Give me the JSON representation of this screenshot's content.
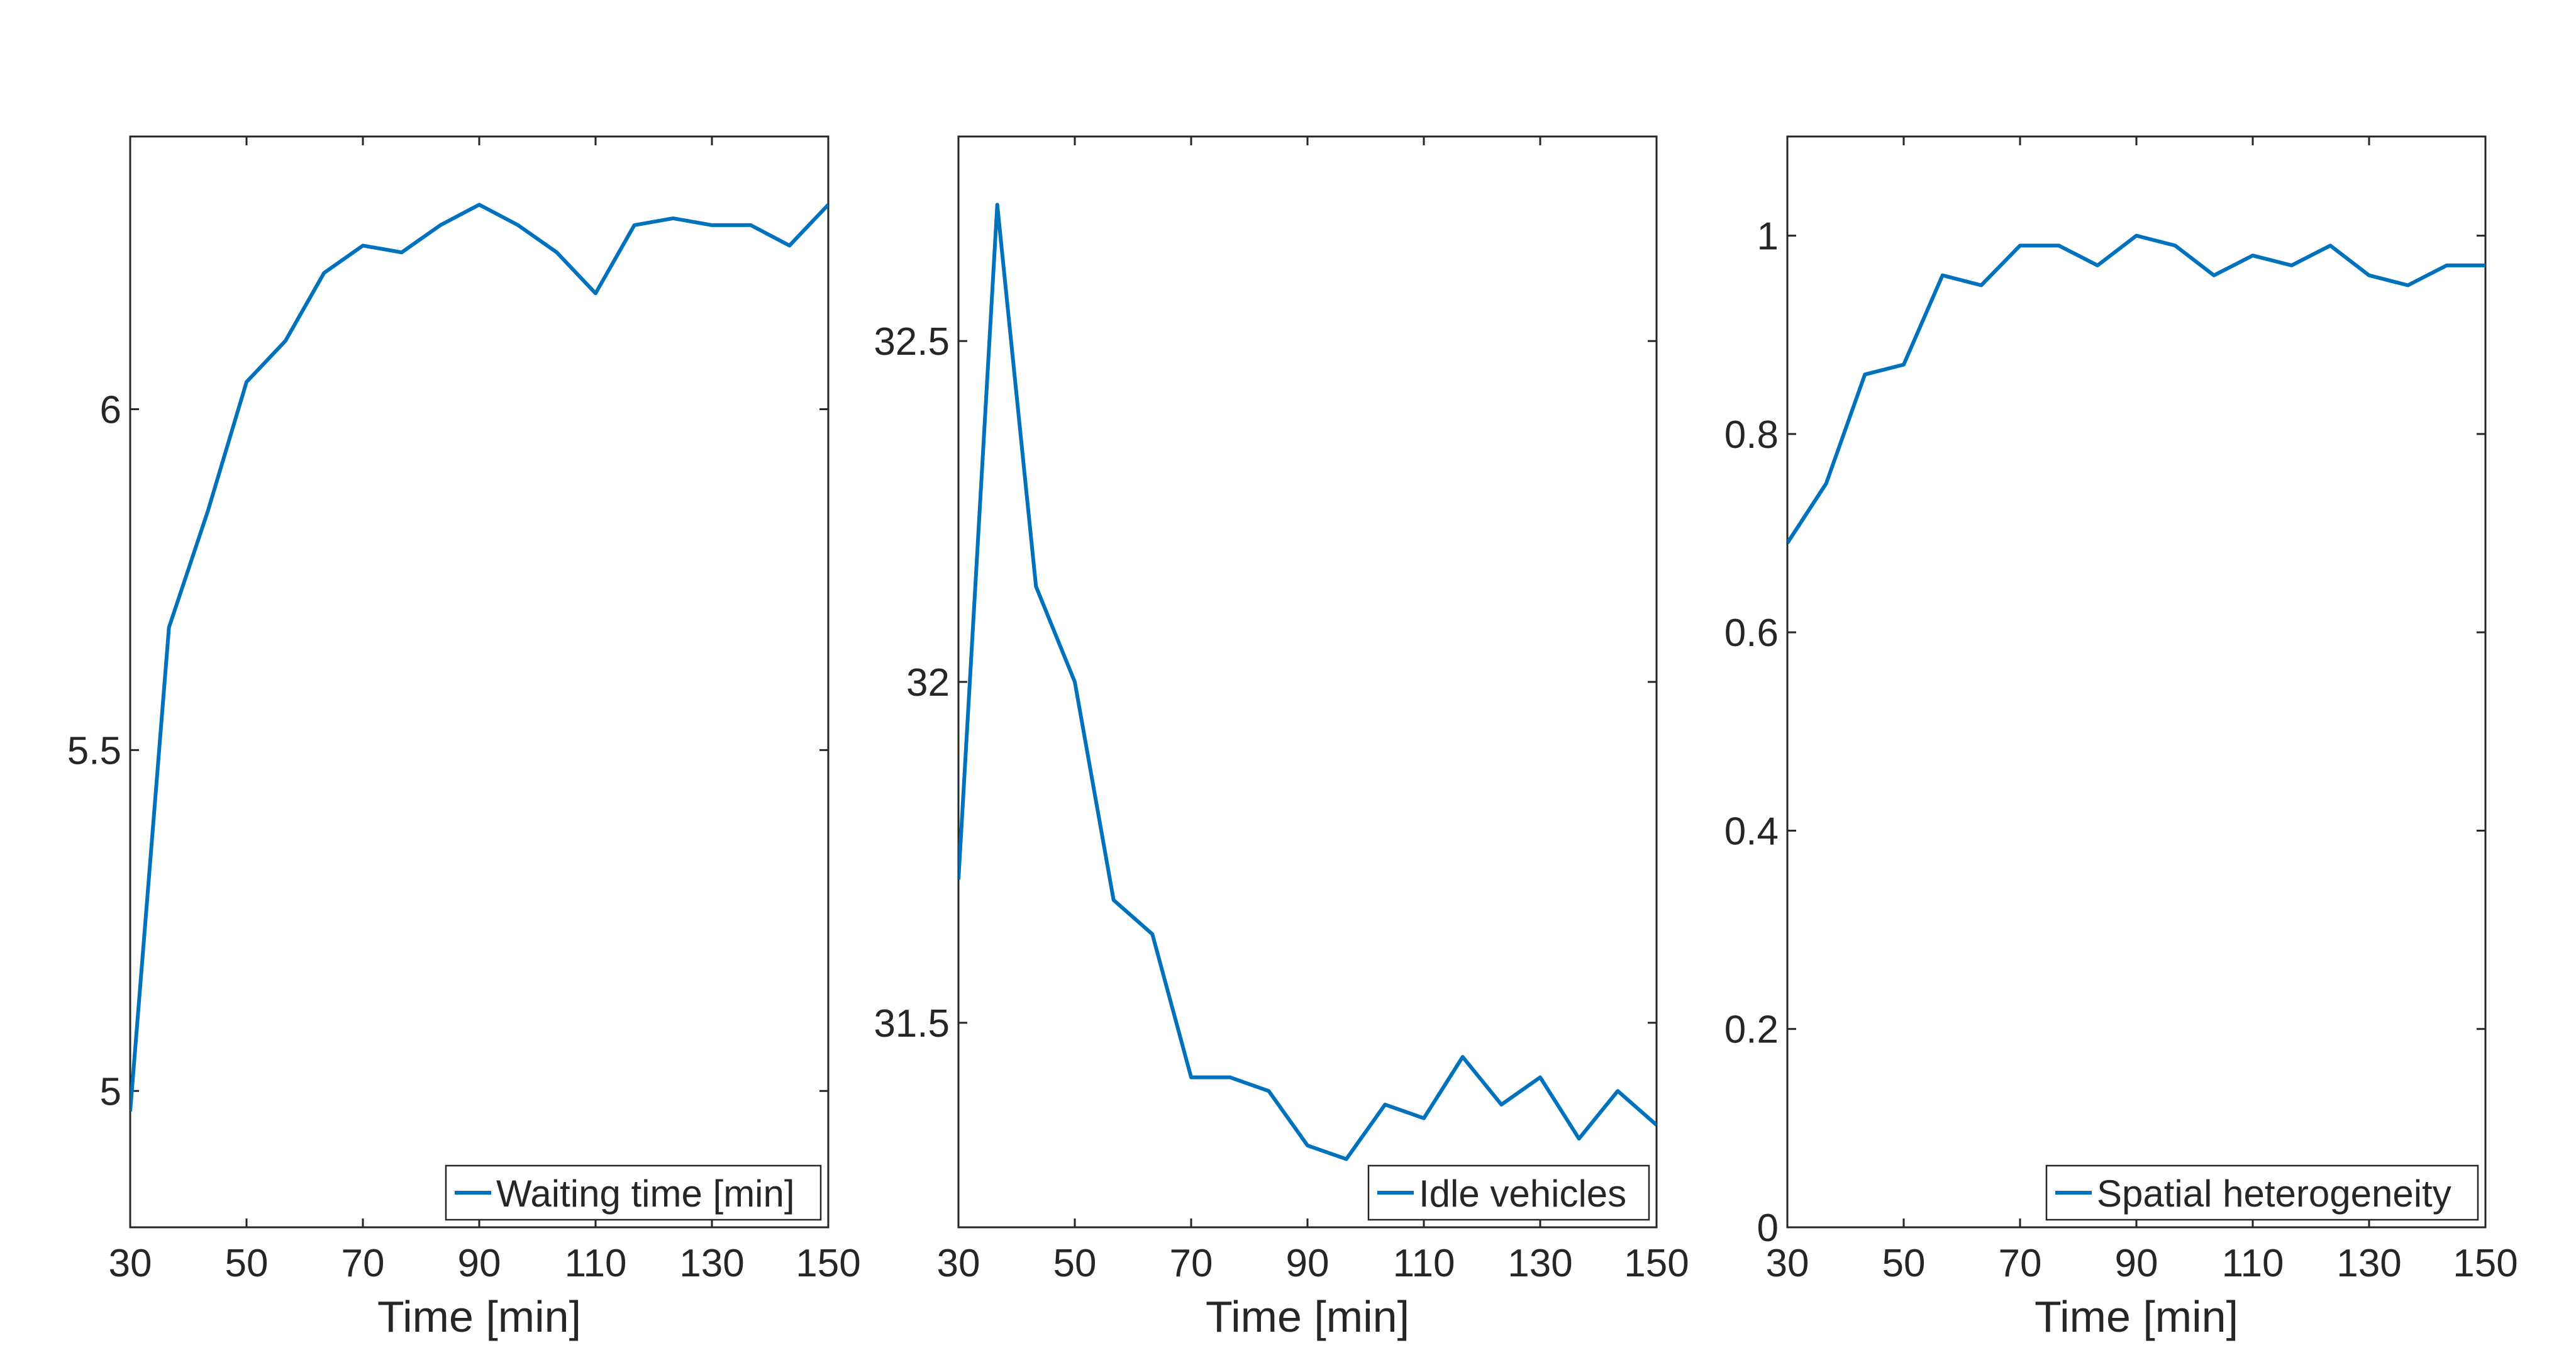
{
  "chart_data": [
    {
      "type": "line",
      "xlabel": "Time [min]",
      "ylabel": "",
      "xlim": [
        30,
        150
      ],
      "ylim": [
        4.8,
        6.4
      ],
      "xticks": [
        30,
        50,
        70,
        90,
        110,
        130,
        150
      ],
      "yticks": [
        5,
        5.5,
        6
      ],
      "legend_position": "bottom-right",
      "grid": false,
      "series": [
        {
          "name": "Waiting time [min]",
          "color": "#0072BD",
          "x": [
            30,
            36.67,
            43.33,
            50,
            56.67,
            63.33,
            70,
            76.67,
            83.33,
            90,
            96.67,
            103.33,
            110,
            116.67,
            123.33,
            130,
            136.67,
            143.33,
            150
          ],
          "values": [
            4.97,
            5.68,
            5.85,
            6.04,
            6.1,
            6.2,
            6.24,
            6.23,
            6.27,
            6.3,
            6.27,
            6.23,
            6.17,
            6.27,
            6.28,
            6.27,
            6.27,
            6.24,
            6.3
          ]
        }
      ]
    },
    {
      "type": "line",
      "xlabel": "Time [min]",
      "ylabel": "",
      "xlim": [
        30,
        150
      ],
      "ylim": [
        31.2,
        32.8
      ],
      "xticks": [
        30,
        50,
        70,
        90,
        110,
        130,
        150
      ],
      "yticks": [
        31.5,
        32,
        32.5
      ],
      "legend_position": "bottom-right",
      "grid": false,
      "series": [
        {
          "name": "Idle vehicles",
          "color": "#0072BD",
          "x": [
            30,
            36.67,
            43.33,
            50,
            56.67,
            63.33,
            70,
            76.67,
            83.33,
            90,
            96.67,
            103.33,
            110,
            116.67,
            123.33,
            130,
            136.67,
            143.33,
            150
          ],
          "values": [
            31.71,
            32.7,
            32.14,
            32.0,
            31.68,
            31.63,
            31.42,
            31.42,
            31.4,
            31.32,
            31.3,
            31.38,
            31.36,
            31.45,
            31.38,
            31.42,
            31.33,
            31.4,
            31.35
          ]
        }
      ]
    },
    {
      "type": "line",
      "xlabel": "Time [min]",
      "ylabel": "",
      "xlim": [
        30,
        150
      ],
      "ylim": [
        0,
        1.1
      ],
      "xticks": [
        30,
        50,
        70,
        90,
        110,
        130,
        150
      ],
      "yticks": [
        0,
        0.2,
        0.4,
        0.6,
        0.8,
        1
      ],
      "legend_position": "bottom-right",
      "grid": false,
      "series": [
        {
          "name": "Spatial heterogeneity",
          "color": "#0072BD",
          "x": [
            30,
            36.67,
            43.33,
            50,
            56.67,
            63.33,
            70,
            76.67,
            83.33,
            90,
            96.67,
            103.33,
            110,
            116.67,
            123.33,
            130,
            136.67,
            143.33,
            150
          ],
          "values": [
            0.69,
            0.75,
            0.86,
            0.87,
            0.96,
            0.95,
            0.99,
            0.99,
            0.97,
            1.0,
            0.99,
            0.96,
            0.98,
            0.97,
            0.99,
            0.96,
            0.95,
            0.97,
            0.97
          ]
        }
      ]
    }
  ]
}
